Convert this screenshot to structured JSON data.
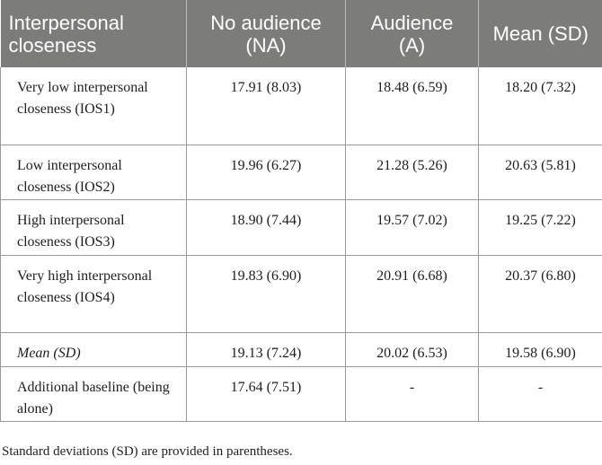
{
  "header": {
    "col1": "Interpersonal closeness",
    "col2": "No audience (NA)",
    "col3": "Audience (A)",
    "col4": "Mean (SD)"
  },
  "rows": [
    {
      "label": "Very low interpersonal closeness (IOS1)",
      "na": "17.91 (8.03)",
      "a": "18.48 (6.59)",
      "mean": "18.20 (7.32)"
    },
    {
      "label": "Low interpersonal closeness (IOS2)",
      "na": "19.96 (6.27)",
      "a": "21.28 (5.26)",
      "mean": "20.63 (5.81)"
    },
    {
      "label": "High interpersonal closeness (IOS3)",
      "na": "18.90 (7.44)",
      "a": "19.57 (7.02)",
      "mean": "19.25 (7.22)"
    },
    {
      "label": "Very high interpersonal closeness (IOS4)",
      "na": "19.83 (6.90)",
      "a": "20.91 (6.68)",
      "mean": "20.37 (6.80)"
    },
    {
      "label": "Mean (SD)",
      "na": "19.13 (7.24)",
      "a": "20.02 (6.53)",
      "mean": "19.58 (6.90)"
    },
    {
      "label": "Additional baseline (being alone)",
      "na": "17.64 (7.51)",
      "a": "-",
      "mean": "-"
    }
  ],
  "footnote": "Standard deviations (SD) are provided in parentheses."
}
